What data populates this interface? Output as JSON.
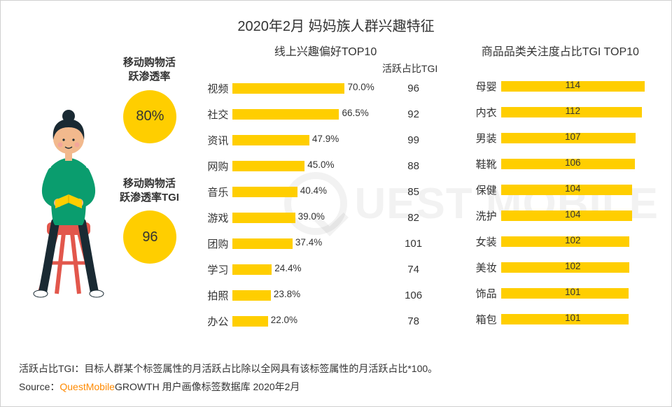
{
  "title": "2020年2月 妈妈族人群兴趣特征",
  "colors": {
    "bar": "#ffce00",
    "circle": "#ffce00",
    "text": "#333333",
    "brand": "#ff8a00",
    "illustration_top": "#0a9d6e",
    "illustration_skin": "#f2b98d",
    "illustration_hair": "#1a2a33",
    "illustration_legs": "#1a2a33",
    "illustration_chair": "#e2574c",
    "illustration_book": "#ffce00"
  },
  "left": {
    "metric1": {
      "label": "移动购物活\n跃渗透率",
      "value": "80%"
    },
    "metric2": {
      "label": "移动购物活\n跃渗透率TGI",
      "value": "96"
    }
  },
  "middle": {
    "title": "线上兴趣偏好TOP10",
    "tgi_header": "活跃占比TGI",
    "max_pct": 70.0,
    "rows": [
      {
        "label": "视频",
        "pct": 70.0,
        "pct_label": "70.0%",
        "tgi": 96
      },
      {
        "label": "社交",
        "pct": 66.5,
        "pct_label": "66.5%",
        "tgi": 92
      },
      {
        "label": "资讯",
        "pct": 47.9,
        "pct_label": "47.9%",
        "tgi": 99
      },
      {
        "label": "网购",
        "pct": 45.0,
        "pct_label": "45.0%",
        "tgi": 88
      },
      {
        "label": "音乐",
        "pct": 40.4,
        "pct_label": "40.4%",
        "tgi": 85
      },
      {
        "label": "游戏",
        "pct": 39.0,
        "pct_label": "39.0%",
        "tgi": 82
      },
      {
        "label": "团购",
        "pct": 37.4,
        "pct_label": "37.4%",
        "tgi": 101
      },
      {
        "label": "学习",
        "pct": 24.4,
        "pct_label": "24.4%",
        "tgi": 74
      },
      {
        "label": "拍照",
        "pct": 23.8,
        "pct_label": "23.8%",
        "tgi": 106
      },
      {
        "label": "办公",
        "pct": 22.0,
        "pct_label": "22.0%",
        "tgi": 78
      }
    ]
  },
  "right": {
    "title": "商品品类关注度占比TGI TOP10",
    "max_val": 114,
    "rows": [
      {
        "label": "母婴",
        "val": 114
      },
      {
        "label": "内衣",
        "val": 112
      },
      {
        "label": "男装",
        "val": 107
      },
      {
        "label": "鞋靴",
        "val": 106
      },
      {
        "label": "保健",
        "val": 104
      },
      {
        "label": "洗护",
        "val": 104
      },
      {
        "label": "女装",
        "val": 102
      },
      {
        "label": "美妆",
        "val": 102
      },
      {
        "label": "饰品",
        "val": 101
      },
      {
        "label": "箱包",
        "val": 101
      }
    ]
  },
  "footer": {
    "note": "活跃占比TGI：目标人群某个标签属性的月活跃占比除以全网具有该标签属性的月活跃占比*100。",
    "source_prefix": "Source：",
    "source_brand": "QuestMobile",
    "source_rest": "GROWTH 用户画像标签数据库 2020年2月"
  },
  "watermark": "UEST MOBILE"
}
